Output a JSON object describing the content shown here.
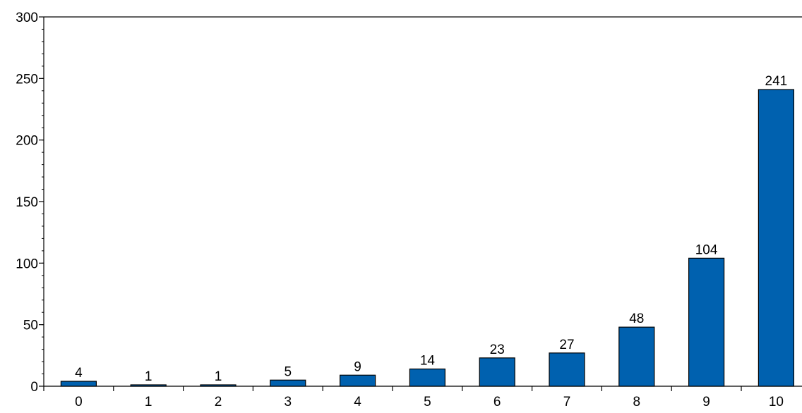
{
  "chart_data": {
    "type": "bar",
    "categories": [
      "0",
      "1",
      "2",
      "3",
      "4",
      "5",
      "6",
      "7",
      "8",
      "9",
      "10"
    ],
    "values": [
      4,
      1,
      1,
      5,
      9,
      14,
      23,
      27,
      48,
      104,
      241
    ],
    "data_labels": [
      "4",
      "1",
      "1",
      "5",
      "9",
      "14",
      "23",
      "27",
      "48",
      "104",
      "241"
    ],
    "title": "",
    "xlabel": "",
    "ylabel": "",
    "ylim": [
      0,
      300
    ],
    "yticks": [
      0,
      50,
      100,
      150,
      200,
      250,
      300
    ],
    "ytick_labels": [
      "0",
      "50",
      "100",
      "150",
      "200",
      "250",
      "300"
    ],
    "y_minor_step": 10,
    "grid": false,
    "legend": "none",
    "colors": {
      "bar_fill": "#0061AF",
      "bar_stroke": "#000000",
      "axis": "#000000",
      "text": "#000000"
    }
  }
}
